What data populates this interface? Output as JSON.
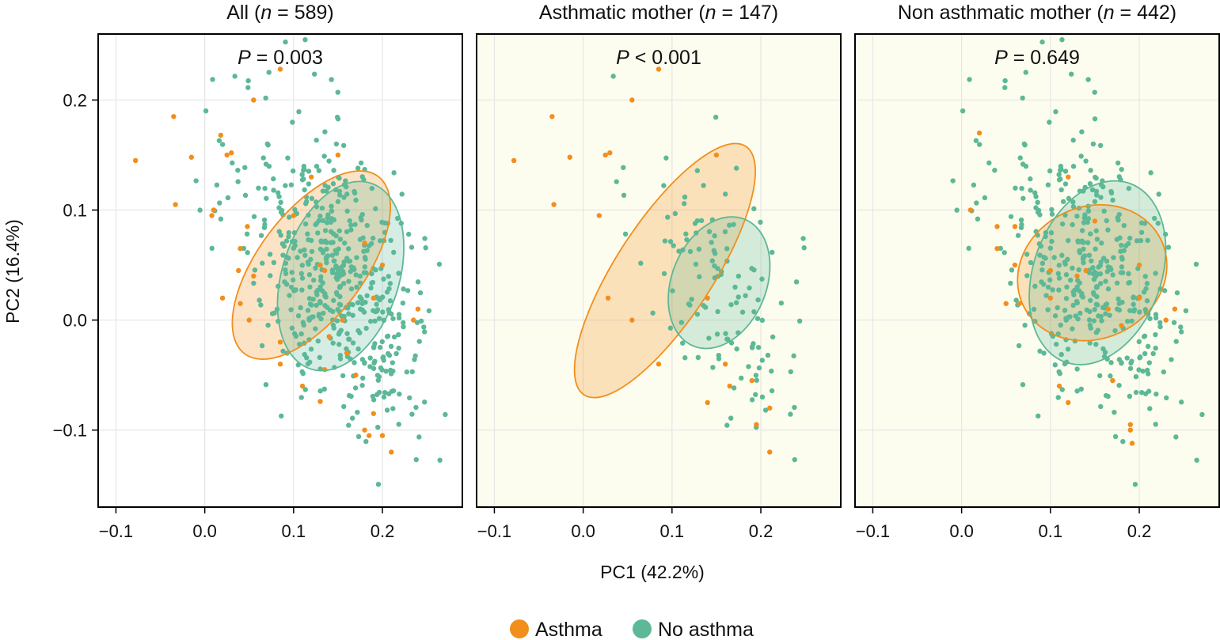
{
  "chart_data": {
    "type": "scatter",
    "xlabel": "PC1 (42.2%)",
    "ylabel": "PC2 (16.4%)",
    "xlim": [
      -0.12,
      0.29
    ],
    "ylim": [
      -0.17,
      0.26
    ],
    "x_ticks": [
      -0.1,
      0.0,
      0.1,
      0.2
    ],
    "x_tick_labels": [
      "−0.1",
      "0.0",
      "0.1",
      "0.2"
    ],
    "y_ticks": [
      0.2,
      0.1,
      0.0,
      -0.1
    ],
    "y_tick_labels": [
      "0.2",
      "0.1",
      "0.0",
      "−0.1"
    ],
    "colors": {
      "Asthma": "#f28e1c",
      "No asthma": "#5cb896",
      "panel_bg_highlight": "#fdfdef"
    },
    "legend": [
      {
        "name": "Asthma",
        "color": "#f28e1c"
      },
      {
        "name": "No asthma",
        "color": "#5cb896"
      }
    ],
    "panels": [
      {
        "title_prefix": "All (",
        "title_n": "n",
        "title_suffix": " = 589)",
        "p_symbol": "P",
        "p_text": " = 0.003",
        "background": "#ffffff",
        "ellipses": [
          {
            "group": "Asthma",
            "cx": 0.12,
            "cy": 0.05,
            "rx": 0.125,
            "ry": 0.048,
            "angle": -53
          },
          {
            "group": "No asthma",
            "cx": 0.153,
            "cy": 0.04,
            "rx": 0.11,
            "ry": 0.053,
            "angle": -72
          }
        ],
        "asthma_points": [
          [
            -0.078,
            0.145
          ],
          [
            -0.035,
            0.185
          ],
          [
            -0.015,
            0.148
          ],
          [
            -0.033,
            0.105
          ],
          [
            0.018,
            0.168
          ],
          [
            0.025,
            0.15
          ],
          [
            0.03,
            0.152
          ],
          [
            0.055,
            0.2
          ],
          [
            0.085,
            0.228
          ],
          [
            0.1,
            0.095
          ],
          [
            0.01,
            0.1
          ],
          [
            0.008,
            0.095
          ],
          [
            0.04,
            0.065
          ],
          [
            0.048,
            0.085
          ],
          [
            0.055,
            0.04
          ],
          [
            0.038,
            0.045
          ],
          [
            0.02,
            0.02
          ],
          [
            0.04,
            0.015
          ],
          [
            0.05,
            0.0
          ],
          [
            0.085,
            -0.04
          ],
          [
            0.11,
            -0.06
          ],
          [
            0.13,
            -0.074
          ],
          [
            0.135,
            -0.045
          ],
          [
            0.14,
            -0.015
          ],
          [
            0.13,
            0.05
          ],
          [
            0.155,
            0.0
          ],
          [
            0.16,
            -0.03
          ],
          [
            0.17,
            -0.05
          ],
          [
            0.18,
            -0.1
          ],
          [
            0.185,
            -0.105
          ],
          [
            0.19,
            -0.085
          ],
          [
            0.2,
            -0.105
          ],
          [
            0.21,
            -0.12
          ],
          [
            0.2,
            0.05
          ],
          [
            0.24,
            0.01
          ],
          [
            0.235,
            0.0
          ],
          [
            0.19,
            0.02
          ],
          [
            0.12,
            0.13
          ],
          [
            0.135,
            0.045
          ],
          [
            0.085,
            -0.02
          ],
          [
            0.15,
            0.15
          ],
          [
            0.18,
            0.07
          ]
        ]
      },
      {
        "title_prefix": "Asthmatic mother (",
        "title_n": "n",
        "title_suffix": " = 147)",
        "p_symbol": "P",
        "p_text": " < 0.001",
        "background": "#fdfdef",
        "ellipses": [
          {
            "group": "Asthma",
            "cx": 0.092,
            "cy": 0.045,
            "rx": 0.167,
            "ry": 0.044,
            "angle": -57
          },
          {
            "group": "No asthma",
            "cx": 0.153,
            "cy": 0.034,
            "rx": 0.077,
            "ry": 0.043,
            "angle": -68
          }
        ],
        "asthma_points": [
          [
            -0.078,
            0.145
          ],
          [
            -0.035,
            0.185
          ],
          [
            -0.015,
            0.148
          ],
          [
            -0.033,
            0.105
          ],
          [
            0.025,
            0.15
          ],
          [
            0.03,
            0.152
          ],
          [
            0.055,
            0.2
          ],
          [
            0.085,
            0.228
          ],
          [
            0.018,
            0.095
          ],
          [
            0.028,
            0.02
          ],
          [
            0.055,
            -0.0
          ],
          [
            0.085,
            -0.04
          ],
          [
            0.14,
            -0.075
          ],
          [
            0.16,
            -0.04
          ],
          [
            0.165,
            -0.06
          ],
          [
            0.195,
            -0.095
          ],
          [
            0.21,
            -0.12
          ],
          [
            0.21,
            -0.08
          ],
          [
            0.19,
            -0.055
          ],
          [
            0.15,
            0.15
          ],
          [
            0.14,
            0.02
          ]
        ]
      },
      {
        "title_prefix": "Non asthmatic mother (",
        "title_n": "n",
        "title_suffix": " = 442)",
        "p_symbol": "P",
        "p_text": " = 0.649",
        "background": "#fdfdef",
        "ellipses": [
          {
            "group": "Asthma",
            "cx": 0.147,
            "cy": 0.043,
            "rx": 0.086,
            "ry": 0.06,
            "angle": -25
          },
          {
            "group": "No asthma",
            "cx": 0.153,
            "cy": 0.043,
            "rx": 0.107,
            "ry": 0.058,
            "angle": -70
          }
        ],
        "asthma_points": [
          [
            0.02,
            0.17
          ],
          [
            0.01,
            0.1
          ],
          [
            0.04,
            0.085
          ],
          [
            0.04,
            0.065
          ],
          [
            0.06,
            0.085
          ],
          [
            0.12,
            0.13
          ],
          [
            0.15,
            0.09
          ],
          [
            0.14,
            0.045
          ],
          [
            0.13,
            0.04
          ],
          [
            0.1,
            0.045
          ],
          [
            0.06,
            0.05
          ],
          [
            0.065,
            0.015
          ],
          [
            0.05,
            0.015
          ],
          [
            0.1,
            0.02
          ],
          [
            0.165,
            0.01
          ],
          [
            0.2,
            0.05
          ],
          [
            0.2,
            0.02
          ],
          [
            0.24,
            0.01
          ],
          [
            0.23,
            0.0
          ],
          [
            0.18,
            -0.005
          ],
          [
            0.17,
            -0.055
          ],
          [
            0.11,
            -0.06
          ],
          [
            0.19,
            -0.095
          ],
          [
            0.19,
            -0.1
          ],
          [
            0.192,
            -0.112
          ],
          [
            0.12,
            -0.075
          ]
        ]
      }
    ]
  }
}
